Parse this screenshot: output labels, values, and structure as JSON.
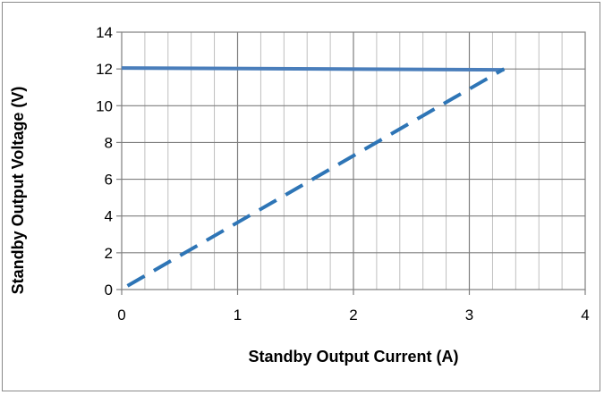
{
  "chart_data": {
    "type": "line",
    "title": "",
    "xlabel": "Standby Output Current (A)",
    "ylabel": "Standby Output Voltage (V)",
    "xlim": [
      0,
      4
    ],
    "ylim": [
      0,
      14
    ],
    "x_ticks": [
      "0",
      "1",
      "2",
      "3",
      "4"
    ],
    "y_ticks": [
      "0",
      "2",
      "4",
      "6",
      "8",
      "10",
      "12",
      "14"
    ],
    "grid": true,
    "legend": "none",
    "series": [
      {
        "style": "solid",
        "color": "#4a7ebb",
        "x": [
          0,
          3.3
        ],
        "y": [
          12.05,
          11.95
        ]
      },
      {
        "style": "dashed",
        "color": "#2e75b6",
        "x": [
          0.05,
          3.3
        ],
        "y": [
          0.2,
          12.0
        ]
      }
    ]
  }
}
